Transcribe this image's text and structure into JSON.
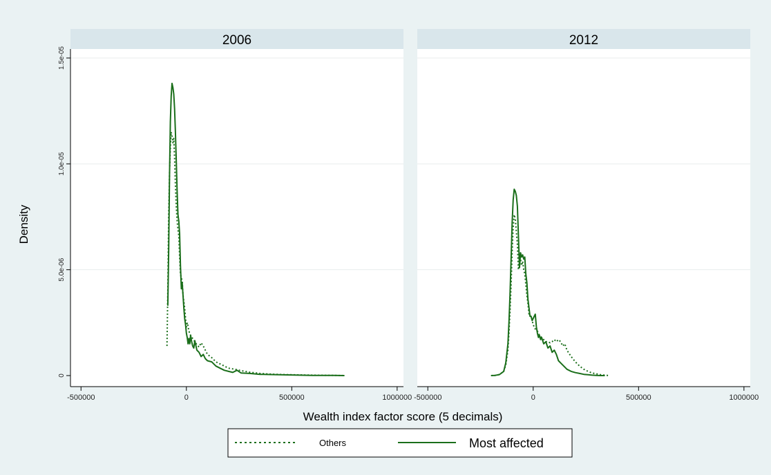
{
  "chart_data": {
    "type": "line",
    "xlabel": "Wealth index factor score (5 decimals)",
    "ylabel": "Density",
    "xlim": [
      -550000,
      1030000
    ],
    "ylim": [
      0,
      1.5e-05
    ],
    "x_ticks": [
      -500000,
      0,
      500000,
      1000000
    ],
    "x_tick_labels": [
      "-500000",
      "0",
      "500000",
      "1000000"
    ],
    "y_ticks": [
      0,
      5e-06,
      1e-05,
      1.5e-05
    ],
    "y_tick_labels": [
      "0",
      "5.0e-06",
      "1.0e-05",
      "1.5e-05"
    ],
    "grid": true,
    "legend_placement": "bottom",
    "colors": {
      "outer_background": "#eaf2f3",
      "panel_header": "#d9e6eb",
      "plot_background": "#ffffff",
      "grid": "#e8eded",
      "series": "#1a6e1a"
    },
    "legend": {
      "entries": [
        {
          "label": "Others",
          "style": "dashed"
        },
        {
          "label": "Most affected",
          "style": "solid"
        }
      ]
    },
    "panels": [
      {
        "title": "2006",
        "series": [
          {
            "name": "Others",
            "x": [
              -92000,
              -88000,
              -84000,
              -80000,
              -76000,
              -72000,
              -68000,
              -64000,
              -60000,
              -56000,
              -52000,
              -48000,
              -44000,
              -40000,
              -36000,
              -32000,
              -28000,
              -24000,
              -20000,
              -16000,
              -12000,
              -8000,
              -4000,
              0,
              5000,
              10000,
              15000,
              20000,
              30000,
              40000,
              50000,
              60000,
              70000,
              80000,
              90000,
              100000,
              120000,
              140000,
              160000,
              180000,
              200000,
              230000,
              260000,
              300000,
              350000,
              400000,
              450000,
              500000,
              600000,
              700000,
              750000
            ],
            "y": [
              1.4e-06,
              4e-06,
              7.6e-06,
              9.6e-06,
              1.08e-05,
              1.15e-05,
              1.13e-05,
              1.1e-05,
              1.12e-05,
              1.03e-05,
              9e-06,
              8e-06,
              7.3e-06,
              6.9e-06,
              6.6e-06,
              5.6e-06,
              4.8e-06,
              4.6e-06,
              4.5e-06,
              3.8e-06,
              3.5e-06,
              3.2e-06,
              2.7e-06,
              2.3e-06,
              2.5e-06,
              2.2e-06,
              2e-06,
              1.9e-06,
              1.75e-06,
              1.6e-06,
              1.45e-06,
              1.35e-06,
              1.55e-06,
              1.4e-06,
              1.2e-06,
              1e-06,
              8.5e-07,
              6.5e-07,
              5.5e-07,
              4.5e-07,
              3.5e-07,
              3e-07,
              2.3e-07,
              1.6e-07,
              1e-07,
              7e-08,
              5e-08,
              4e-08,
              2e-08,
              1e-08,
              0
            ]
          },
          {
            "name": "Most affected",
            "x": [
              -88000,
              -84000,
              -80000,
              -76000,
              -72000,
              -68000,
              -64000,
              -60000,
              -56000,
              -52000,
              -48000,
              -44000,
              -40000,
              -36000,
              -32000,
              -28000,
              -24000,
              -20000,
              -16000,
              -12000,
              -8000,
              -4000,
              0,
              4000,
              8000,
              12000,
              16000,
              20000,
              25000,
              30000,
              35000,
              40000,
              50000,
              60000,
              70000,
              80000,
              90000,
              100000,
              120000,
              140000,
              160000,
              180000,
              200000,
              220000,
              240000,
              260000,
              300000,
              350000,
              400000,
              500000,
              600000,
              700000,
              750000
            ],
            "y": [
              3.3e-06,
              6e-06,
              9.5e-06,
              1.2e-05,
              1.32e-05,
              1.38e-05,
              1.36e-05,
              1.33e-05,
              1.26e-05,
              1.15e-05,
              1.02e-05,
              8.7e-06,
              7.6e-06,
              7.3e-06,
              6.7e-06,
              5.2e-06,
              4.1e-06,
              4.4e-06,
              3.8e-06,
              3.2e-06,
              2.7e-06,
              2.4e-06,
              2e-06,
              1.8e-06,
              1.5e-06,
              1.75e-06,
              1.5e-06,
              1.9e-06,
              1.6e-06,
              1.4e-06,
              1.3e-06,
              1.65e-06,
              1.2e-06,
              1.1e-06,
              9e-07,
              1e-06,
              8e-07,
              7e-07,
              6.5e-07,
              4.5e-07,
              3.5e-07,
              2.5e-07,
              2e-07,
              1.5e-07,
              2.5e-07,
              1.2e-07,
              1e-07,
              6e-08,
              5e-08,
              3e-08,
              1e-08,
              1e-08,
              0
            ]
          }
        ]
      },
      {
        "title": "2012",
        "series": [
          {
            "name": "Others",
            "x": [
              -200000,
              -180000,
              -160000,
              -140000,
              -130000,
              -120000,
              -115000,
              -110000,
              -105000,
              -100000,
              -95000,
              -90000,
              -85000,
              -80000,
              -75000,
              -70000,
              -65000,
              -60000,
              -55000,
              -50000,
              -45000,
              -40000,
              -35000,
              -30000,
              -25000,
              -20000,
              -15000,
              -10000,
              -5000,
              0,
              10000,
              20000,
              30000,
              40000,
              50000,
              60000,
              70000,
              80000,
              90000,
              100000,
              110000,
              120000,
              130000,
              140000,
              150000,
              160000,
              180000,
              200000,
              220000,
              240000,
              260000,
              280000,
              300000,
              320000,
              340000,
              360000
            ],
            "y": [
              0,
              1e-08,
              5e-08,
              2e-07,
              5e-07,
              1.2e-06,
              2e-06,
              3e-06,
              4.3e-06,
              5.8e-06,
              7e-06,
              7.6e-06,
              7.4e-06,
              6.8e-06,
              6.2e-06,
              5e-06,
              5.4e-06,
              5.5e-06,
              5.2e-06,
              5.4e-06,
              5e-06,
              4.8e-06,
              4.3e-06,
              3.8e-06,
              3.4e-06,
              2.9e-06,
              2.8e-06,
              2.8e-06,
              2.6e-06,
              2.4e-06,
              2.2e-06,
              2.1e-06,
              1.9e-06,
              1.8e-06,
              1.7e-06,
              1.6e-06,
              1.6e-06,
              1.55e-06,
              1.6e-06,
              1.7e-06,
              1.6e-06,
              1.7e-06,
              1.6e-06,
              1.4e-06,
              1.5e-06,
              1.2e-06,
              9e-07,
              6.5e-07,
              4.5e-07,
              3e-07,
              2e-07,
              1.2e-07,
              8e-08,
              4e-08,
              2e-08,
              0
            ]
          },
          {
            "name": "Most affected",
            "x": [
              -200000,
              -180000,
              -160000,
              -140000,
              -130000,
              -120000,
              -115000,
              -110000,
              -105000,
              -100000,
              -95000,
              -90000,
              -85000,
              -80000,
              -75000,
              -70000,
              -65000,
              -60000,
              -55000,
              -50000,
              -45000,
              -40000,
              -35000,
              -30000,
              -25000,
              -20000,
              -15000,
              -10000,
              -5000,
              0,
              5000,
              10000,
              15000,
              20000,
              25000,
              30000,
              35000,
              40000,
              50000,
              60000,
              70000,
              80000,
              90000,
              100000,
              110000,
              120000,
              130000,
              140000,
              150000,
              160000,
              180000,
              200000,
              220000,
              240000,
              260000,
              280000,
              300000,
              320000,
              340000
            ],
            "y": [
              0,
              1e-08,
              5e-08,
              2e-07,
              6e-07,
              1.5e-06,
              2.5e-06,
              3.8e-06,
              5.5e-06,
              7.2e-06,
              8.3e-06,
              8.8e-06,
              8.7e-06,
              8.5e-06,
              8e-06,
              6.6e-06,
              5.1e-06,
              5.8e-06,
              5.6e-06,
              5.7e-06,
              5.5e-06,
              5.6e-06,
              4.8e-06,
              4.4e-06,
              3.6e-06,
              3.2e-06,
              2.8e-06,
              2.8e-06,
              2.6e-06,
              2.7e-06,
              2.8e-06,
              2.9e-06,
              2.3e-06,
              2e-06,
              1.8e-06,
              1.9e-06,
              1.7e-06,
              1.8e-06,
              1.5e-06,
              1.6e-06,
              1.3e-06,
              1.4e-06,
              1.1e-06,
              1.2e-06,
              1e-06,
              7e-07,
              6e-07,
              5e-07,
              4e-07,
              3e-07,
              2e-07,
              1.4e-07,
              1e-07,
              6e-08,
              4e-08,
              2e-08,
              1e-08,
              0,
              0
            ]
          }
        ]
      }
    ]
  }
}
